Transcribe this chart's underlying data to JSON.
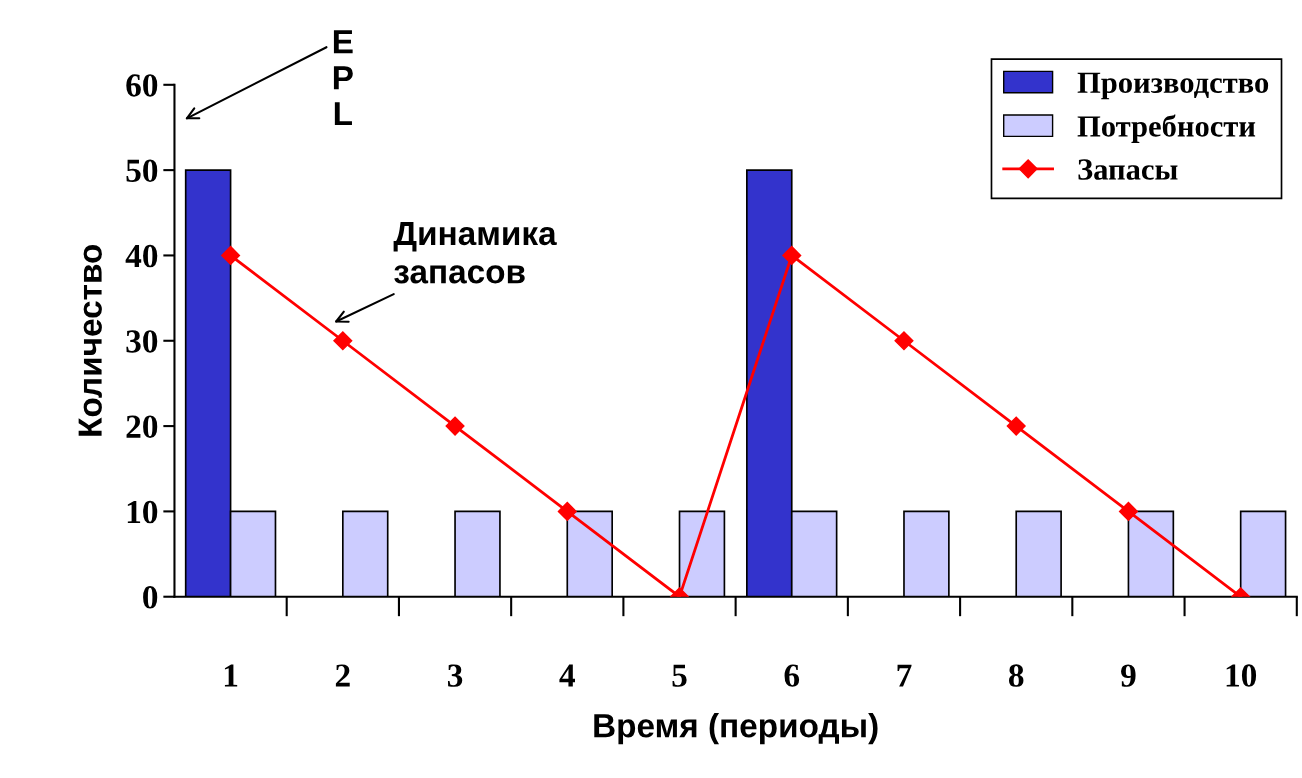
{
  "chart_data": {
    "type": "bar",
    "xlabel": "Время (периоды)",
    "ylabel": "Количество",
    "categories": [
      "1",
      "2",
      "3",
      "4",
      "5",
      "6",
      "7",
      "8",
      "9",
      "10"
    ],
    "series": [
      {
        "name": "Производство",
        "color": "#3333cc",
        "values": [
          50,
          0,
          0,
          0,
          0,
          50,
          0,
          0,
          0,
          0
        ]
      },
      {
        "name": "Потребности",
        "color": "#ccccff",
        "values": [
          10,
          10,
          10,
          10,
          10,
          10,
          10,
          10,
          10,
          10
        ]
      },
      {
        "name": "Запасы",
        "type": "line",
        "color": "#ff0000",
        "marker": "diamond",
        "values": [
          40,
          30,
          20,
          10,
          0,
          40,
          30,
          20,
          10,
          0
        ]
      }
    ],
    "ylim": [
      0,
      60
    ],
    "yticks": [
      0,
      10,
      20,
      30,
      40,
      50,
      60
    ],
    "grid": false,
    "legend": "top right",
    "annotations": [
      "EPL",
      {
        "text": "Динамика запасов",
        "x": "2",
        "y": 30
      }
    ]
  }
}
